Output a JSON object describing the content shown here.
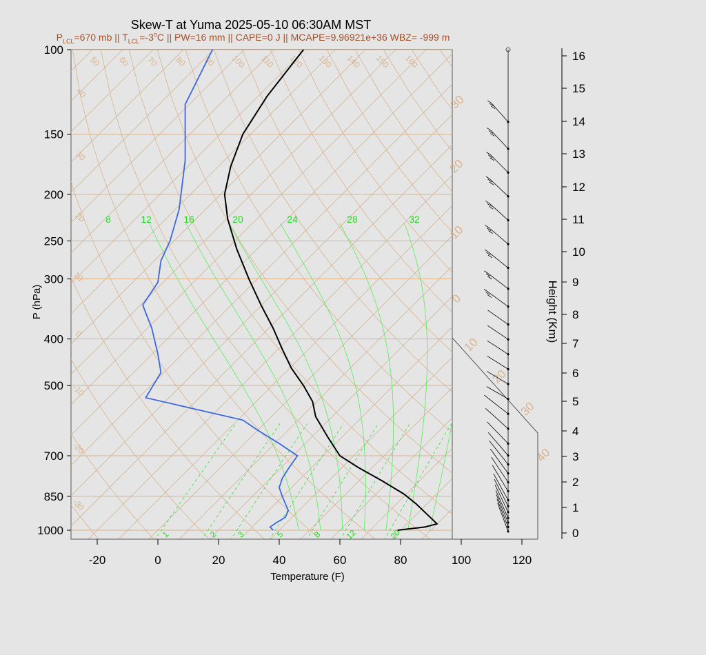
{
  "chart_data": {
    "type": "line",
    "title": "Skew-T at Yuma 2025-05-10 06:30AM MST",
    "subtitle": {
      "p_lcl_label": "P",
      "p_lcl_sub": "LCL",
      "p_lcl_value": "=670 mb || ",
      "t_lcl_label": "T",
      "t_lcl_sub": "LCL",
      "t_lcl_value": "=-3",
      "deg": "o",
      "rest": "C || PW=16 mm || CAPE=0 J || MCAPE=9.96921e+36 WBZ= -999 m"
    },
    "xlabel": "Temperature (F)",
    "ylabel": "P (hPa)",
    "y2label": "Height (Km)",
    "xlim": [
      -29,
      96
    ],
    "ylim": [
      1050,
      100
    ],
    "x_ticks": [
      -20,
      0,
      20,
      40,
      60,
      80,
      100,
      120
    ],
    "p_ticks": [
      100,
      150,
      200,
      250,
      300,
      400,
      500,
      700,
      850,
      1000
    ],
    "height_ticks": [
      0,
      1,
      2,
      3,
      4,
      5,
      6,
      7,
      8,
      9,
      10,
      11,
      12,
      13,
      14,
      15,
      16
    ],
    "isotherm_labels": [
      "50",
      "60",
      "70",
      "80",
      "90",
      "100",
      "110",
      "120",
      "130",
      "140",
      "150",
      "160"
    ],
    "dry_adiabat_labels": [
      "40",
      "30",
      "20",
      "10",
      "0",
      "-10",
      "-20",
      "-30"
    ],
    "mixing_ratio_labels": [
      "8",
      "12",
      "16",
      "20",
      "24",
      "28",
      "32"
    ],
    "mixing_ratio_bottom_labels": [
      "1",
      "2",
      "3",
      "5",
      "8",
      "12",
      "20"
    ],
    "moist_adiabat_labels": [
      "30",
      "20",
      "10",
      "0",
      "10",
      "20",
      "30",
      "40"
    ],
    "series": [
      {
        "color": "#000000",
        "points": [
          [
            79,
            1000
          ],
          [
            88,
            985
          ],
          [
            92,
            970
          ],
          [
            89,
            930
          ],
          [
            85,
            880
          ],
          [
            81,
            840
          ],
          [
            74,
            790
          ],
          [
            66,
            740
          ],
          [
            60,
            700
          ],
          [
            56,
            640
          ],
          [
            52,
            580
          ],
          [
            51,
            540
          ],
          [
            48,
            500
          ],
          [
            44,
            460
          ],
          [
            41,
            420
          ],
          [
            38,
            380
          ],
          [
            34,
            340
          ],
          [
            30,
            300
          ],
          [
            26,
            260
          ],
          [
            23,
            225
          ],
          [
            22,
            200
          ],
          [
            24,
            175
          ],
          [
            28,
            150
          ],
          [
            36,
            125
          ],
          [
            48,
            100
          ]
        ]
      },
      {
        "color": "#3a66e0",
        "points": [
          [
            38,
            1000
          ],
          [
            37,
            985
          ],
          [
            39,
            965
          ],
          [
            42,
            940
          ],
          [
            43,
            910
          ],
          [
            42,
            880
          ],
          [
            41,
            850
          ],
          [
            40,
            815
          ],
          [
            41,
            780
          ],
          [
            43,
            745
          ],
          [
            46,
            700
          ],
          [
            40,
            660
          ],
          [
            33,
            620
          ],
          [
            28,
            590
          ],
          [
            -4,
            530
          ],
          [
            -2,
            505
          ],
          [
            1,
            470
          ],
          [
            0,
            430
          ],
          [
            -2,
            380
          ],
          [
            -5,
            340
          ],
          [
            0,
            305
          ],
          [
            1,
            275
          ],
          [
            4,
            250
          ],
          [
            7,
            215
          ],
          [
            9,
            170
          ],
          [
            9,
            130
          ],
          [
            18,
            100
          ]
        ]
      }
    ],
    "wind_barb_heights_km": [
      0.05,
      0.2,
      0.35,
      0.5,
      0.7,
      0.9,
      1.1,
      1.4,
      1.7,
      2.0,
      2.3,
      2.6,
      3.0,
      3.5,
      4.0,
      4.5,
      5.0,
      5.5,
      6.0,
      6.5,
      7.0,
      7.6,
      8.2,
      8.9,
      9.7,
      10.5,
      11.3,
      12.1,
      12.9,
      13.8
    ]
  }
}
